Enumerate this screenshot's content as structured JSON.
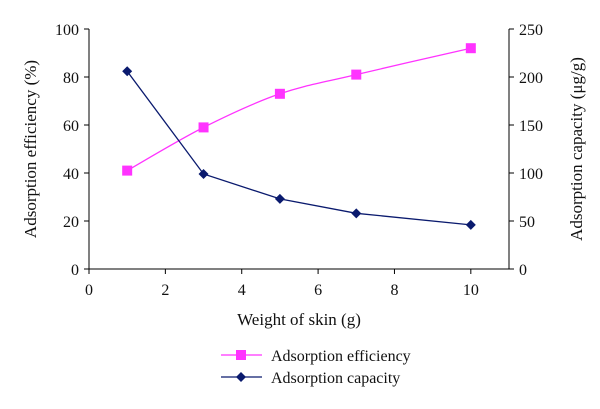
{
  "chart_data": {
    "type": "line",
    "title": "",
    "xlabel": "Weight of skin (g)",
    "ylabel": "Adsorption efficiency (%)",
    "y2label": "Adsorption capacity (μg/g)",
    "xlim": [
      0,
      11
    ],
    "xticks": [
      0,
      2,
      4,
      6,
      8,
      10
    ],
    "ylim": [
      0,
      100
    ],
    "yticks": [
      0,
      20,
      40,
      60,
      80,
      100
    ],
    "y2lim": [
      0,
      250
    ],
    "y2ticks": [
      0,
      50,
      100,
      150,
      200,
      250
    ],
    "grid": false,
    "legend_position": "bottom-left",
    "series": [
      {
        "name": "Adsorption efficiency",
        "axis": "left",
        "marker": "square",
        "color": "#ff33ff",
        "x": [
          1,
          3,
          5,
          7,
          10
        ],
        "y": [
          41,
          59,
          73,
          81,
          92
        ]
      },
      {
        "name": "Adsorption capacity",
        "axis": "right",
        "marker": "diamond",
        "color": "#0a1a6e",
        "x": [
          1,
          3,
          5,
          7,
          10
        ],
        "y": [
          206,
          99,
          73,
          58,
          46
        ]
      }
    ]
  }
}
